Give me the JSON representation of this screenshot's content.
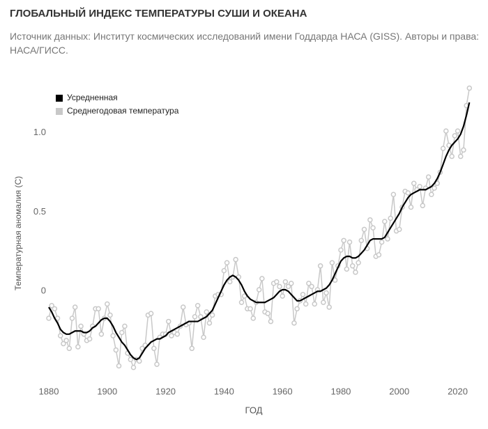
{
  "chart_data": {
    "type": "line",
    "title": "ГЛОБАЛЬНЫЙ ИНДЕКС ТЕМПЕРАТУРЫ СУШИ И ОКЕАНА",
    "subtitle": "Источник данных: Институт космических исследований имени Годдарда НАСА (GISS). Авторы и права: НАСА/ГИСС.",
    "xlabel": "ГОД",
    "ylabel": "Температурная аномалия (C)",
    "x": [
      1880,
      1881,
      1882,
      1883,
      1884,
      1885,
      1886,
      1887,
      1888,
      1889,
      1890,
      1891,
      1892,
      1893,
      1894,
      1895,
      1896,
      1897,
      1898,
      1899,
      1900,
      1901,
      1902,
      1903,
      1904,
      1905,
      1906,
      1907,
      1908,
      1909,
      1910,
      1911,
      1912,
      1913,
      1914,
      1915,
      1916,
      1917,
      1918,
      1919,
      1920,
      1921,
      1922,
      1923,
      1924,
      1925,
      1926,
      1927,
      1928,
      1929,
      1930,
      1931,
      1932,
      1933,
      1934,
      1935,
      1936,
      1937,
      1938,
      1939,
      1940,
      1941,
      1942,
      1943,
      1944,
      1945,
      1946,
      1947,
      1948,
      1949,
      1950,
      1951,
      1952,
      1953,
      1954,
      1955,
      1956,
      1957,
      1958,
      1959,
      1960,
      1961,
      1962,
      1963,
      1964,
      1965,
      1966,
      1967,
      1968,
      1969,
      1970,
      1971,
      1972,
      1973,
      1974,
      1975,
      1976,
      1977,
      1978,
      1979,
      1980,
      1981,
      1982,
      1983,
      1984,
      1985,
      1986,
      1987,
      1988,
      1989,
      1990,
      1991,
      1992,
      1993,
      1994,
      1995,
      1996,
      1997,
      1998,
      1999,
      2000,
      2001,
      2002,
      2003,
      2004,
      2005,
      2006,
      2007,
      2008,
      2009,
      2010,
      2011,
      2012,
      2013,
      2014,
      2015,
      2016,
      2017,
      2018,
      2019,
      2020,
      2021,
      2022,
      2023,
      2024
    ],
    "series": [
      {
        "name": "Усредненная",
        "color": "#000000",
        "markers": false,
        "values": [
          -0.1,
          -0.13,
          -0.17,
          -0.2,
          -0.24,
          -0.26,
          -0.27,
          -0.27,
          -0.26,
          -0.25,
          -0.25,
          -0.25,
          -0.26,
          -0.26,
          -0.25,
          -0.23,
          -0.22,
          -0.2,
          -0.18,
          -0.17,
          -0.17,
          -0.19,
          -0.22,
          -0.26,
          -0.29,
          -0.32,
          -0.34,
          -0.37,
          -0.4,
          -0.42,
          -0.43,
          -0.42,
          -0.39,
          -0.36,
          -0.34,
          -0.32,
          -0.31,
          -0.3,
          -0.3,
          -0.29,
          -0.28,
          -0.26,
          -0.25,
          -0.24,
          -0.23,
          -0.22,
          -0.21,
          -0.2,
          -0.19,
          -0.19,
          -0.19,
          -0.19,
          -0.18,
          -0.17,
          -0.16,
          -0.14,
          -0.12,
          -0.08,
          -0.04,
          0.0,
          0.04,
          0.07,
          0.09,
          0.1,
          0.09,
          0.07,
          0.04,
          0.0,
          -0.03,
          -0.05,
          -0.06,
          -0.07,
          -0.07,
          -0.07,
          -0.07,
          -0.06,
          -0.05,
          -0.04,
          -0.02,
          0.0,
          0.01,
          0.01,
          0.0,
          -0.02,
          -0.04,
          -0.06,
          -0.06,
          -0.05,
          -0.04,
          -0.03,
          -0.02,
          -0.01,
          0.0,
          0.0,
          0.01,
          0.02,
          0.04,
          0.07,
          0.11,
          0.15,
          0.19,
          0.21,
          0.22,
          0.22,
          0.21,
          0.21,
          0.22,
          0.24,
          0.26,
          0.29,
          0.32,
          0.33,
          0.33,
          0.33,
          0.33,
          0.34,
          0.37,
          0.4,
          0.43,
          0.46,
          0.49,
          0.53,
          0.56,
          0.59,
          0.61,
          0.62,
          0.63,
          0.64,
          0.64,
          0.64,
          0.65,
          0.66,
          0.68,
          0.71,
          0.75,
          0.8,
          0.85,
          0.89,
          0.92,
          0.94,
          0.96,
          0.99,
          1.04,
          1.11,
          1.19
        ]
      },
      {
        "name": "Среднегодовая температура",
        "color": "#c8c8c8",
        "markers": true,
        "values": [
          -0.17,
          -0.09,
          -0.11,
          -0.17,
          -0.28,
          -0.33,
          -0.31,
          -0.36,
          -0.17,
          -0.1,
          -0.35,
          -0.22,
          -0.27,
          -0.31,
          -0.3,
          -0.22,
          -0.11,
          -0.11,
          -0.27,
          -0.17,
          -0.08,
          -0.15,
          -0.28,
          -0.37,
          -0.47,
          -0.26,
          -0.22,
          -0.39,
          -0.43,
          -0.48,
          -0.43,
          -0.44,
          -0.36,
          -0.34,
          -0.15,
          -0.14,
          -0.36,
          -0.46,
          -0.29,
          -0.27,
          -0.27,
          -0.19,
          -0.28,
          -0.26,
          -0.27,
          -0.22,
          -0.1,
          -0.21,
          -0.2,
          -0.36,
          -0.16,
          -0.09,
          -0.16,
          -0.29,
          -0.13,
          -0.2,
          -0.15,
          -0.03,
          -0.02,
          -0.02,
          0.13,
          0.18,
          0.06,
          0.09,
          0.2,
          0.09,
          -0.07,
          -0.03,
          -0.11,
          -0.11,
          -0.17,
          -0.07,
          0.01,
          0.08,
          -0.13,
          -0.14,
          -0.19,
          0.05,
          0.06,
          0.03,
          -0.03,
          0.06,
          0.03,
          0.05,
          -0.2,
          -0.11,
          -0.06,
          -0.02,
          -0.08,
          0.05,
          0.03,
          -0.08,
          0.01,
          0.16,
          -0.07,
          -0.01,
          -0.1,
          0.18,
          0.07,
          0.16,
          0.26,
          0.32,
          0.14,
          0.31,
          0.16,
          0.12,
          0.18,
          0.32,
          0.39,
          0.27,
          0.45,
          0.4,
          0.22,
          0.23,
          0.31,
          0.44,
          0.33,
          0.46,
          0.61,
          0.38,
          0.39,
          0.53,
          0.63,
          0.62,
          0.53,
          0.68,
          0.64,
          0.66,
          0.54,
          0.65,
          0.72,
          0.61,
          0.65,
          0.68,
          0.75,
          0.9,
          1.01,
          0.92,
          0.85,
          0.98,
          1.01,
          0.85,
          0.89,
          1.17,
          1.28
        ]
      }
    ],
    "xlim": [
      1878,
      2025
    ],
    "xticks": [
      1880,
      1900,
      1920,
      1940,
      1960,
      1980,
      2000,
      2020
    ],
    "ylim": [
      -0.6,
      1.3
    ],
    "yticks": [
      0,
      0.5,
      {
        "value": 1,
        "label": "1.0"
      }
    ],
    "grid": false,
    "legend": "upper left"
  }
}
